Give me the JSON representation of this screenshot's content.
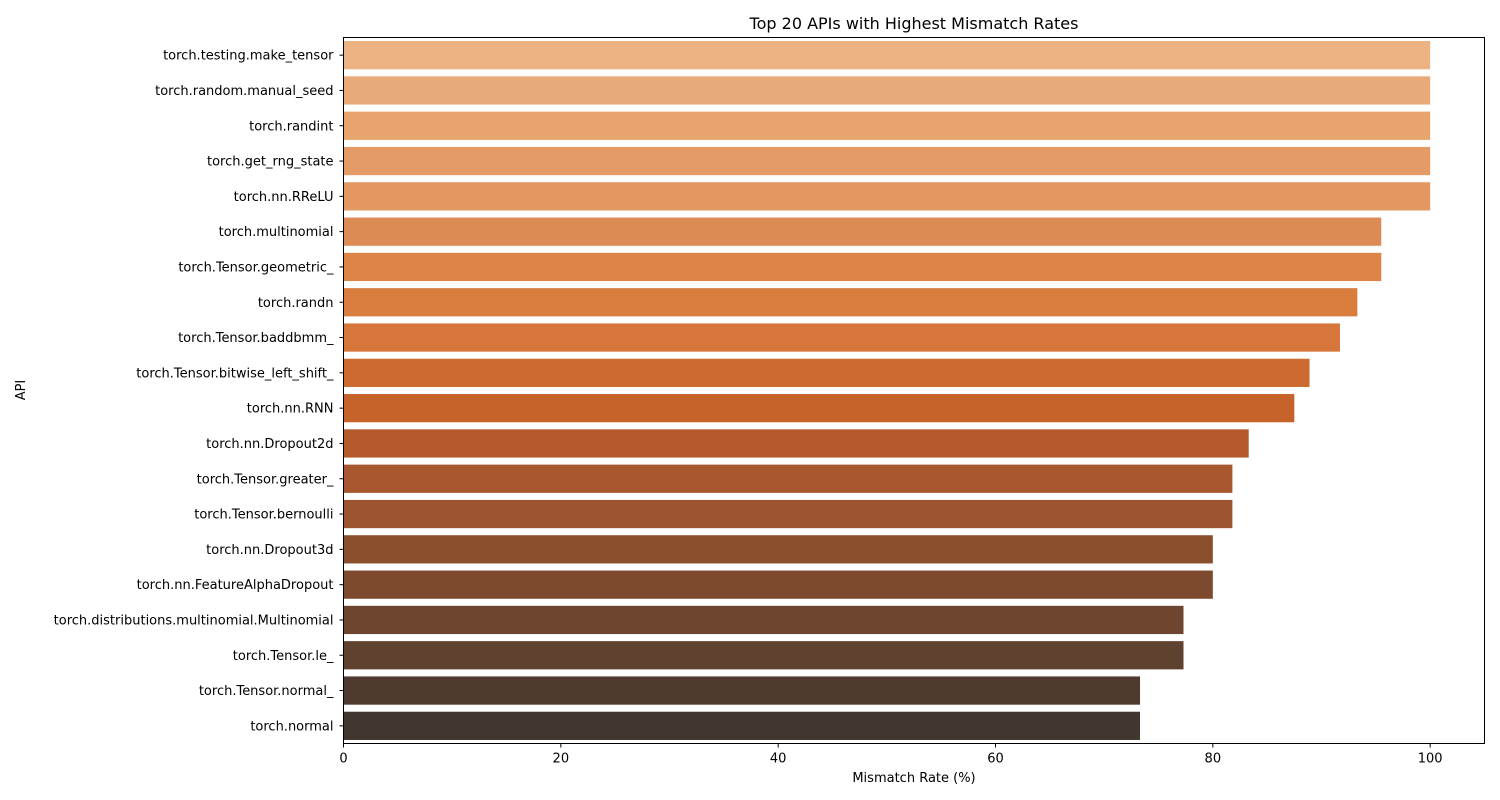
{
  "chart_data": {
    "type": "bar",
    "orientation": "horizontal",
    "title": "Top 20 APIs with Highest Mismatch Rates",
    "xlabel": "Mismatch Rate (%)",
    "ylabel": "API",
    "xlim": [
      0,
      105
    ],
    "xticks": [
      0,
      20,
      40,
      60,
      80,
      100
    ],
    "grid": false,
    "categories": [
      "torch.testing.make_tensor",
      "torch.random.manual_seed",
      "torch.randint",
      "torch.get_rng_state",
      "torch.nn.RReLU",
      "torch.multinomial",
      "torch.Tensor.geometric_",
      "torch.randn",
      "torch.Tensor.baddbmm_",
      "torch.Tensor.bitwise_left_shift_",
      "torch.nn.RNN",
      "torch.nn.Dropout2d",
      "torch.Tensor.greater_",
      "torch.Tensor.bernoulli",
      "torch.nn.Dropout3d",
      "torch.nn.FeatureAlphaDropout",
      "torch.distributions.multinomial.Multinomial",
      "torch.Tensor.le_",
      "torch.Tensor.normal_",
      "torch.normal"
    ],
    "values": [
      100,
      100,
      100,
      100,
      100,
      95.5,
      95.5,
      93.3,
      91.7,
      88.9,
      87.5,
      83.3,
      81.8,
      81.8,
      80.0,
      80.0,
      77.3,
      77.3,
      73.3,
      73.3
    ],
    "colors": [
      "#ecb281",
      "#e8aa78",
      "#e7a46c",
      "#e59b66",
      "#e39862",
      "#dd8b55",
      "#dd8447",
      "#d97d3f",
      "#d6763a",
      "#cc6a2f",
      "#c5632b",
      "#b65a2c",
      "#a8572f",
      "#9c5530",
      "#8c4f2e",
      "#7e4a2e",
      "#6e452f",
      "#5f412f",
      "#4e3a2e",
      "#40372e"
    ]
  }
}
